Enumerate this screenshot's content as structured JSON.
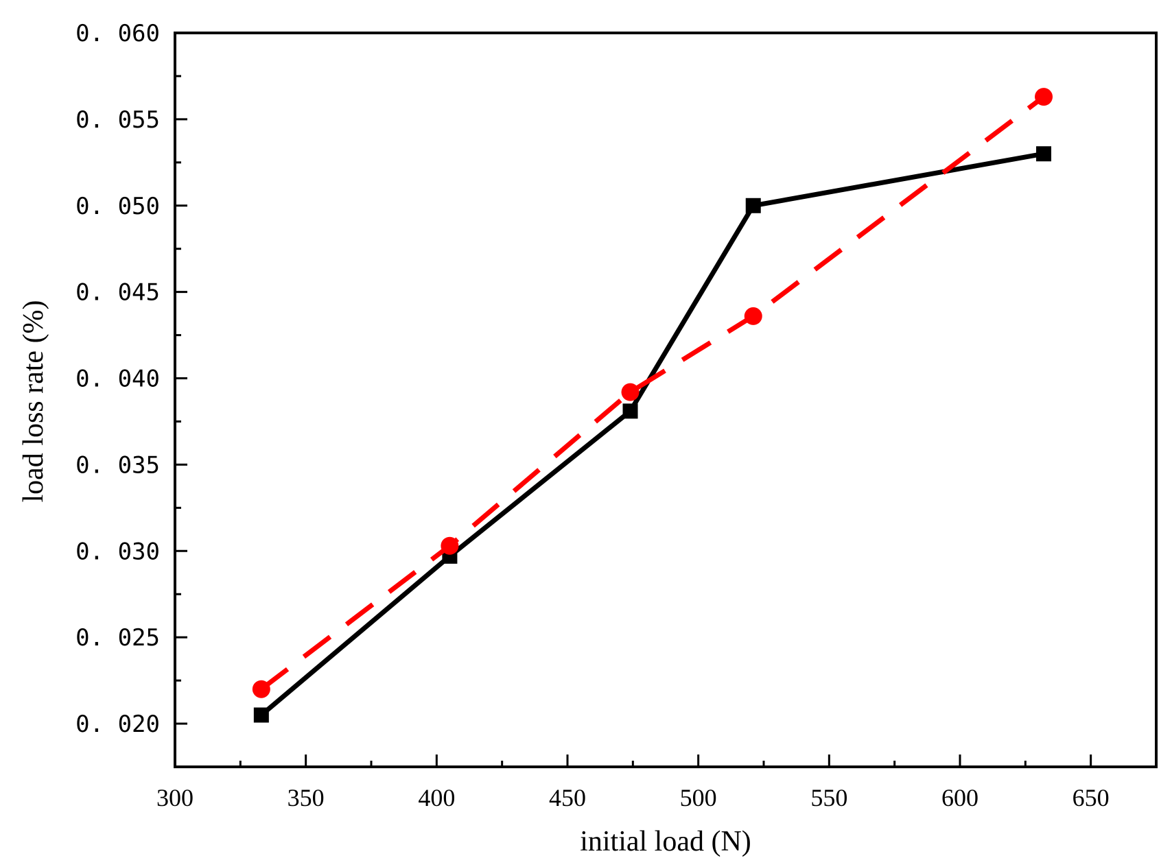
{
  "chart_data": {
    "type": "line",
    "title": "",
    "xlabel": "initial load (N)",
    "ylabel": "load loss rate (%)",
    "xlim": [
      300,
      675
    ],
    "ylim": [
      0.0175,
      0.06
    ],
    "x_ticks": [
      300,
      350,
      400,
      450,
      500,
      550,
      600,
      650
    ],
    "x_tick_labels": [
      "300",
      "350",
      "400",
      "450",
      "500",
      "550",
      "600",
      "650"
    ],
    "y_ticks": [
      0.02,
      0.025,
      0.03,
      0.035,
      0.04,
      0.045,
      0.05,
      0.055,
      0.06
    ],
    "y_tick_labels": [
      "0. 020",
      "0. 025",
      "0. 030",
      "0. 035",
      "0. 040",
      "0. 045",
      "0. 050",
      "0. 055",
      "0. 060"
    ],
    "grid": false,
    "legend": "none",
    "series": [
      {
        "color": "#000000",
        "line_style": "solid",
        "marker": "square",
        "x": [
          333,
          405,
          474,
          521,
          632
        ],
        "y": [
          0.0205,
          0.0297,
          0.0381,
          0.05,
          0.053
        ]
      },
      {
        "color": "#ff0000",
        "line_style": "dashed",
        "marker": "circle",
        "x": [
          333,
          405,
          474,
          521,
          632
        ],
        "y": [
          0.022,
          0.0303,
          0.0392,
          0.0436,
          0.0563
        ]
      }
    ]
  }
}
